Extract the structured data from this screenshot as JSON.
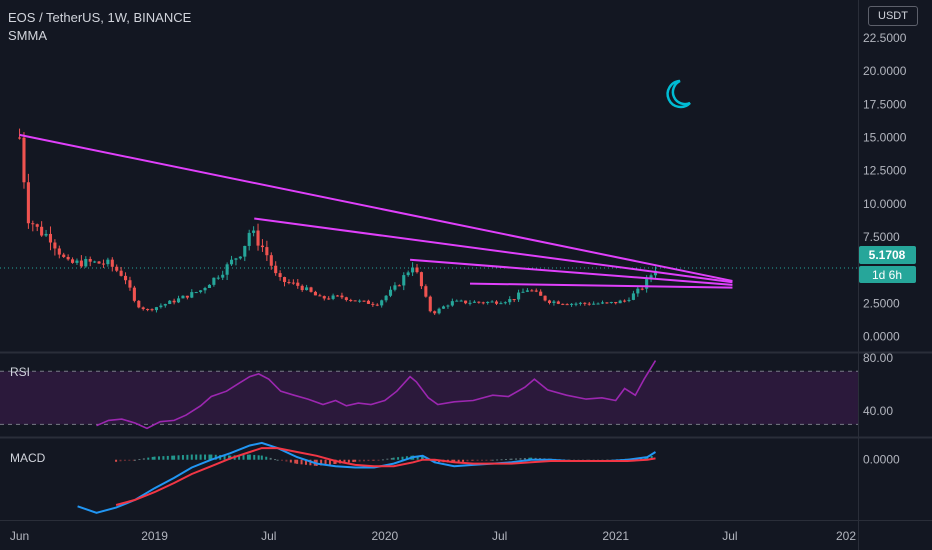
{
  "header": {
    "symbol": "EOS / TetherUS, 1W, BINANCE",
    "indicator": "SMMA",
    "currency_button": "USDT"
  },
  "price_badge": {
    "value": "5.1708",
    "countdown": "1d 6h",
    "color": "#26a69a"
  },
  "colors": {
    "up": "#26a69a",
    "down": "#ef5350",
    "trendline": "#e040fb",
    "rsi": "#9c27b0",
    "macd": "#2196f3",
    "signal": "#f23645",
    "moon": "#00bcd4",
    "background": "#131722"
  },
  "icons": {
    "theme_toggle": "moon-icon"
  },
  "panes": {
    "rsi_label": "RSI",
    "macd_label": "MACD"
  },
  "chart_data": [
    {
      "type": "candlestick",
      "title": "EOS / TetherUS, 1W, BINANCE",
      "y_ticks": [
        "0.0000",
        "2.5000",
        "5.0000",
        "7.5000",
        "10.0000",
        "12.5000",
        "15.0000",
        "17.5000",
        "20.0000",
        "22.5000"
      ],
      "ylim": [
        -1,
        24
      ],
      "x_ticks": [
        "Jun",
        "2019",
        "Jul",
        "2020",
        "Jul",
        "2021",
        "Jul",
        "202"
      ],
      "xlim": [
        "2018-05-01",
        "2022-01-20"
      ],
      "last_price": 5.1708,
      "price_path": [
        [
          "2018-06-01",
          15.0
        ],
        [
          "2018-06-15",
          9.0
        ],
        [
          "2018-07-01",
          8.0
        ],
        [
          "2018-07-20",
          7.5
        ],
        [
          "2018-08-15",
          5.5
        ],
        [
          "2018-09-15",
          5.6
        ],
        [
          "2018-10-20",
          5.5
        ],
        [
          "2018-11-15",
          4.5
        ],
        [
          "2018-12-01",
          2.5
        ],
        [
          "2018-12-20",
          2.0
        ],
        [
          "2019-02-01",
          2.7
        ],
        [
          "2019-03-15",
          3.5
        ],
        [
          "2019-04-20",
          5.0
        ],
        [
          "2019-05-20",
          6.5
        ],
        [
          "2019-06-01",
          8.0
        ],
        [
          "2019-06-25",
          6.5
        ],
        [
          "2019-07-15",
          4.3
        ],
        [
          "2019-08-20",
          3.8
        ],
        [
          "2019-09-20",
          2.9
        ],
        [
          "2019-10-25",
          3.0
        ],
        [
          "2019-11-25",
          2.6
        ],
        [
          "2019-12-20",
          2.5
        ],
        [
          "2020-01-20",
          3.8
        ],
        [
          "2020-02-15",
          5.5
        ],
        [
          "2020-03-01",
          3.5
        ],
        [
          "2020-03-15",
          1.7
        ],
        [
          "2020-04-15",
          2.6
        ],
        [
          "2020-05-20",
          2.6
        ],
        [
          "2020-06-20",
          2.6
        ],
        [
          "2020-07-20",
          2.8
        ],
        [
          "2020-08-15",
          3.6
        ],
        [
          "2020-09-15",
          2.7
        ],
        [
          "2020-10-20",
          2.5
        ],
        [
          "2020-11-20",
          2.5
        ],
        [
          "2020-12-20",
          2.5
        ],
        [
          "2021-01-15",
          2.7
        ],
        [
          "2021-02-10",
          3.6
        ],
        [
          "2021-02-25",
          4.6
        ],
        [
          "2021-03-05",
          5.1708
        ]
      ],
      "trendlines": [
        {
          "start": [
            "2018-06-01",
            15.2
          ],
          "end": [
            "2021-07-05",
            4.2
          ]
        },
        {
          "start": [
            "2019-06-08",
            8.9
          ],
          "end": [
            "2021-07-05",
            4.1
          ]
        },
        {
          "start": [
            "2020-02-10",
            5.8
          ],
          "end": [
            "2021-07-05",
            3.9
          ]
        },
        {
          "start": [
            "2020-05-15",
            4.0
          ],
          "end": [
            "2021-07-05",
            3.7
          ]
        }
      ]
    },
    {
      "type": "line",
      "name": "RSI",
      "y_ticks": [
        "40.00",
        "80.00"
      ],
      "ylim": [
        22,
        83
      ],
      "bands": [
        30,
        70
      ],
      "x": [
        "2018-10-01",
        "2018-10-20",
        "2018-11-10",
        "2018-12-01",
        "2018-12-20",
        "2019-01-10",
        "2019-02-01",
        "2019-02-20",
        "2019-03-15",
        "2019-04-01",
        "2019-04-25",
        "2019-05-15",
        "2019-06-01",
        "2019-06-15",
        "2019-07-01",
        "2019-07-20",
        "2019-08-10",
        "2019-09-01",
        "2019-09-25",
        "2019-10-15",
        "2019-11-01",
        "2019-11-20",
        "2019-12-10",
        "2020-01-01",
        "2020-01-20",
        "2020-02-10",
        "2020-02-20",
        "2020-03-10",
        "2020-03-25",
        "2020-04-20",
        "2020-05-20",
        "2020-06-20",
        "2020-07-15",
        "2020-08-10",
        "2020-08-25",
        "2020-09-15",
        "2020-10-15",
        "2020-11-15",
        "2020-12-10",
        "2021-01-01",
        "2021-01-15",
        "2021-02-01",
        "2021-02-15",
        "2021-03-05"
      ],
      "values": [
        29,
        33,
        34,
        31,
        27,
        32,
        33,
        37,
        44,
        51,
        55,
        61,
        66,
        68,
        64,
        55,
        52,
        49,
        45,
        48,
        44,
        46,
        45,
        48,
        55,
        66,
        62,
        50,
        45,
        47,
        48,
        52,
        51,
        58,
        64,
        56,
        52,
        49,
        50,
        48,
        57,
        52,
        64,
        78
      ]
    },
    {
      "type": "line",
      "name": "MACD",
      "y_ticks": [
        "0.0000"
      ],
      "ylim": [
        -4.5,
        1.6
      ],
      "x": [
        "2018-09-01",
        "2018-10-01",
        "2018-11-01",
        "2018-12-01",
        "2019-01-01",
        "2019-02-01",
        "2019-03-01",
        "2019-04-01",
        "2019-05-01",
        "2019-06-01",
        "2019-06-20",
        "2019-07-15",
        "2019-08-15",
        "2019-09-15",
        "2019-10-15",
        "2019-11-15",
        "2019-12-15",
        "2020-01-15",
        "2020-02-15",
        "2020-03-01",
        "2020-03-20",
        "2020-04-20",
        "2020-05-20",
        "2020-06-20",
        "2020-07-20",
        "2020-08-20",
        "2020-09-20",
        "2020-10-20",
        "2020-11-20",
        "2020-12-20",
        "2021-01-20",
        "2021-02-20",
        "2021-03-05"
      ],
      "series": [
        {
          "name": "MACD",
          "values": [
            -3.6,
            -4.1,
            -3.7,
            -3.1,
            -2.2,
            -1.4,
            -0.6,
            0.0,
            0.5,
            1.1,
            1.3,
            0.9,
            0.2,
            -0.3,
            -0.5,
            -0.6,
            -0.6,
            -0.3,
            0.2,
            0.3,
            -0.2,
            -0.5,
            -0.4,
            -0.3,
            -0.2,
            0.0,
            0.0,
            -0.1,
            -0.1,
            -0.1,
            0.0,
            0.2,
            0.6
          ]
        },
        {
          "name": "Signal",
          "values": [
            null,
            null,
            -3.5,
            -3.1,
            -2.5,
            -1.8,
            -1.1,
            -0.5,
            0.1,
            0.6,
            0.9,
            0.9,
            0.6,
            0.3,
            -0.1,
            -0.4,
            -0.5,
            -0.5,
            -0.2,
            0.0,
            0.0,
            -0.2,
            -0.3,
            -0.3,
            -0.3,
            -0.2,
            -0.1,
            -0.1,
            -0.1,
            -0.1,
            -0.1,
            0.0,
            0.1
          ]
        }
      ]
    }
  ]
}
